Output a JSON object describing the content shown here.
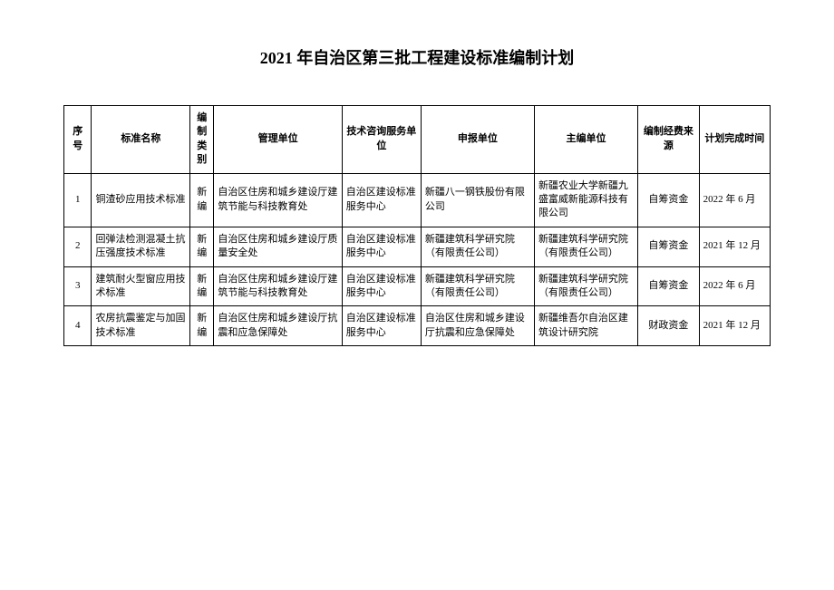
{
  "title": "2021 年自治区第三批工程建设标准编制计划",
  "columns": {
    "seq": "序号",
    "name": "标准名称",
    "type": "编制类别",
    "mgmt": "管理单位",
    "tech": "技术咨询服务单位",
    "apply": "申报单位",
    "editor": "主编单位",
    "fund": "编制经费来源",
    "time": "计划完成时间"
  },
  "rows": [
    {
      "seq": "1",
      "name": "铜渣砂应用技术标准",
      "type": "新编",
      "mgmt": "自治区住房和城乡建设厅建筑节能与科技教育处",
      "tech": "自治区建设标准服务中心",
      "apply": "新疆八一钢铁股份有限公司",
      "editor": "新疆农业大学新疆九盛富威新能源科技有限公司",
      "fund": "自筹资金",
      "time": "2022 年 6 月"
    },
    {
      "seq": "2",
      "name": "回弹法检测混凝土抗压强度技术标准",
      "type": "新编",
      "mgmt": "自治区住房和城乡建设厅质量安全处",
      "tech": "自治区建设标准服务中心",
      "apply": "新疆建筑科学研究院（有限责任公司）",
      "editor": "新疆建筑科学研究院（有限责任公司）",
      "fund": "自筹资金",
      "time": "2021 年 12 月"
    },
    {
      "seq": "3",
      "name": "建筑耐火型窗应用技术标准",
      "type": "新编",
      "mgmt": "自治区住房和城乡建设厅建筑节能与科技教育处",
      "tech": "自治区建设标准服务中心",
      "apply": "新疆建筑科学研究院（有限责任公司）",
      "editor": "新疆建筑科学研究院（有限责任公司）",
      "fund": "自筹资金",
      "time": "2022 年 6 月"
    },
    {
      "seq": "4",
      "name": "农房抗震鉴定与加固技术标准",
      "type": "新编",
      "mgmt": "自治区住房和城乡建设厅抗震和应急保障处",
      "tech": "自治区建设标准服务中心",
      "apply": "自治区住房和城乡建设厅抗震和应急保障处",
      "editor": "新疆维吾尔自治区建筑设计研究院",
      "fund": "财政资金",
      "time": "2021 年 12 月"
    }
  ]
}
